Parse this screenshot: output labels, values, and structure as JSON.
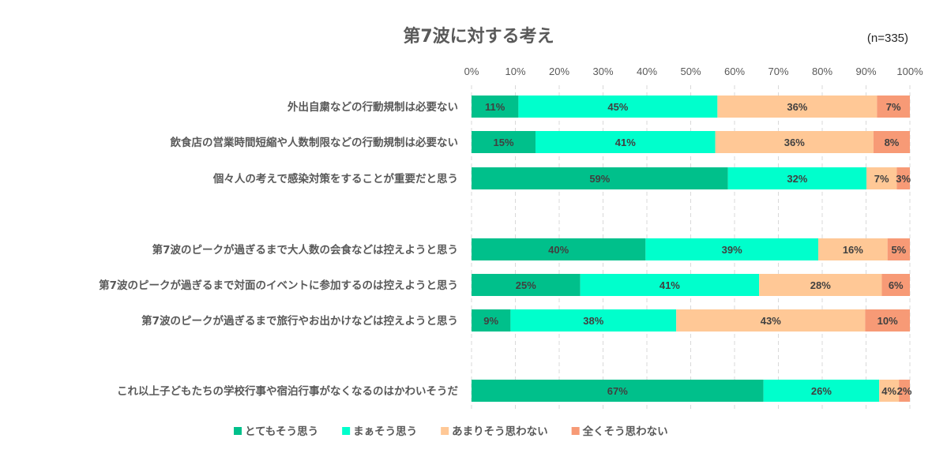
{
  "chart_data": {
    "type": "bar",
    "orientation": "horizontal",
    "stacked": true,
    "title": "第7波に対する考え",
    "sample_note": "(n=335)",
    "xlim": [
      0,
      100
    ],
    "x_ticks": [
      "0%",
      "10%",
      "20%",
      "30%",
      "40%",
      "50%",
      "60%",
      "70%",
      "80%",
      "90%",
      "100%"
    ],
    "grid": true,
    "legend_position": "bottom",
    "categories": [
      "外出自粛などの行動規制は必要ない",
      "飲食店の営業時間短縮や人数制限などの行動規制は必要ない",
      "個々人の考えで感染対策をすることが重要だと思う",
      "第7波のピークが過ぎるまで大人数の会食などは控えようと思う",
      "第7波のピークが過ぎるまで対面のイベントに参加するのは控えようと思う",
      "第7波のピークが過ぎるまで旅行やお出かけなどは控えようと思う",
      "これ以上子どもたちの学校行事や宿泊行事がなくなるのはかわいそうだ"
    ],
    "series": [
      {
        "name": "とてもそう思う",
        "color": "#00C08B",
        "values": [
          10.7,
          14.6,
          58.5,
          39.7,
          24.8,
          8.9,
          66.6
        ],
        "labels": [
          "11%",
          "15%",
          "59%",
          "40%",
          "25%",
          "9%",
          "67%"
        ]
      },
      {
        "name": "まぁそう思う",
        "color": "#00FFCC",
        "values": [
          45.4,
          41.0,
          31.6,
          39.4,
          40.8,
          37.8,
          26.4
        ],
        "labels": [
          "45%",
          "41%",
          "32%",
          "39%",
          "41%",
          "38%",
          "26%"
        ]
      },
      {
        "name": "あまりそう思わない",
        "color": "#FFC896",
        "values": [
          36.4,
          36.1,
          6.9,
          15.8,
          28.0,
          43.1,
          4.5
        ],
        "labels": [
          "36%",
          "36%",
          "7%",
          "16%",
          "28%",
          "43%",
          "4%"
        ]
      },
      {
        "name": "全くそう思わない",
        "color": "#F79A76",
        "values": [
          7.5,
          8.3,
          3.0,
          5.1,
          6.4,
          10.2,
          2.5
        ],
        "labels": [
          "7%",
          "8%",
          "3%",
          "5%",
          "6%",
          "10%",
          "2%"
        ]
      }
    ]
  }
}
